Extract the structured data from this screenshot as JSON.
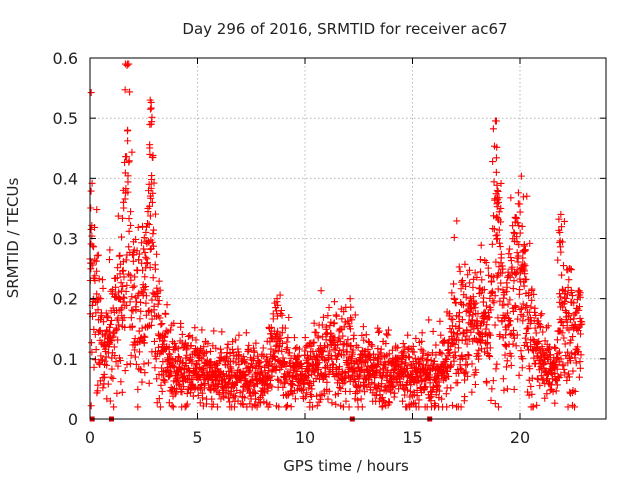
{
  "chart_data": {
    "type": "scatter",
    "title": "Day 296 of 2016, SRMTID for receiver ac67",
    "xlabel": "GPS time / hours",
    "ylabel": "SRMTID / TECUs",
    "xlim": [
      0,
      24
    ],
    "ylim": [
      0,
      0.6
    ],
    "xticks": [
      0,
      5,
      10,
      15,
      20
    ],
    "xtick_labels": [
      "0",
      "5",
      "10",
      "15",
      "20"
    ],
    "yticks": [
      0,
      0.1,
      0.2,
      0.3,
      0.4,
      0.5,
      0.6
    ],
    "ytick_labels": [
      "0",
      "0.1",
      "0.2",
      "0.3",
      "0.4",
      "0.5",
      "0.6"
    ],
    "grid": true,
    "marker": "plus",
    "series_color": "#ff0000",
    "baseline_marker_color": "#cc0000",
    "series": [
      {
        "name": "SRMTID",
        "profile": [
          {
            "x": 0.0,
            "y": 0.31
          },
          {
            "x": 0.5,
            "y": 0.12
          },
          {
            "x": 1.0,
            "y": 0.14
          },
          {
            "x": 1.5,
            "y": 0.18
          },
          {
            "x": 1.7,
            "y": 0.38
          },
          {
            "x": 2.0,
            "y": 0.16
          },
          {
            "x": 2.5,
            "y": 0.2
          },
          {
            "x": 2.8,
            "y": 0.3
          },
          {
            "x": 3.2,
            "y": 0.12
          },
          {
            "x": 4.0,
            "y": 0.08
          },
          {
            "x": 5.0,
            "y": 0.08
          },
          {
            "x": 6.0,
            "y": 0.07
          },
          {
            "x": 7.0,
            "y": 0.07
          },
          {
            "x": 8.0,
            "y": 0.07
          },
          {
            "x": 8.7,
            "y": 0.11
          },
          {
            "x": 9.5,
            "y": 0.07
          },
          {
            "x": 10.0,
            "y": 0.08
          },
          {
            "x": 11.0,
            "y": 0.1
          },
          {
            "x": 12.0,
            "y": 0.11
          },
          {
            "x": 12.5,
            "y": 0.07
          },
          {
            "x": 13.5,
            "y": 0.08
          },
          {
            "x": 14.5,
            "y": 0.07
          },
          {
            "x": 15.5,
            "y": 0.07
          },
          {
            "x": 16.5,
            "y": 0.08
          },
          {
            "x": 17.0,
            "y": 0.14
          },
          {
            "x": 18.0,
            "y": 0.15
          },
          {
            "x": 18.5,
            "y": 0.13
          },
          {
            "x": 18.9,
            "y": 0.3
          },
          {
            "x": 19.3,
            "y": 0.15
          },
          {
            "x": 19.8,
            "y": 0.22
          },
          {
            "x": 20.2,
            "y": 0.2
          },
          {
            "x": 20.6,
            "y": 0.12
          },
          {
            "x": 21.2,
            "y": 0.1
          },
          {
            "x": 21.7,
            "y": 0.07
          },
          {
            "x": 22.0,
            "y": 0.2
          },
          {
            "x": 22.4,
            "y": 0.12
          },
          {
            "x": 22.8,
            "y": 0.15
          }
        ],
        "peaks": [
          {
            "x": 0.05,
            "y": 0.315
          },
          {
            "x": 1.75,
            "y": 0.48
          },
          {
            "x": 1.55,
            "y": 0.38
          },
          {
            "x": 2.8,
            "y": 0.53
          },
          {
            "x": 2.85,
            "y": 0.49
          },
          {
            "x": 2.9,
            "y": 0.435
          },
          {
            "x": 2.75,
            "y": 0.39
          },
          {
            "x": 2.6,
            "y": 0.31
          },
          {
            "x": 8.7,
            "y": 0.2
          },
          {
            "x": 12.1,
            "y": 0.2
          },
          {
            "x": 18.9,
            "y": 0.41
          },
          {
            "x": 18.95,
            "y": 0.38
          },
          {
            "x": 19.0,
            "y": 0.36
          },
          {
            "x": 19.8,
            "y": 0.335
          },
          {
            "x": 20.1,
            "y": 0.32
          },
          {
            "x": 20.2,
            "y": 0.29
          },
          {
            "x": 21.9,
            "y": 0.34
          },
          {
            "x": 21.85,
            "y": 0.31
          },
          {
            "x": 22.3,
            "y": 0.25
          },
          {
            "x": 22.8,
            "y": 0.21
          }
        ],
        "baseline_points": [
          0.1,
          1.0,
          12.2,
          15.8
        ]
      }
    ]
  }
}
